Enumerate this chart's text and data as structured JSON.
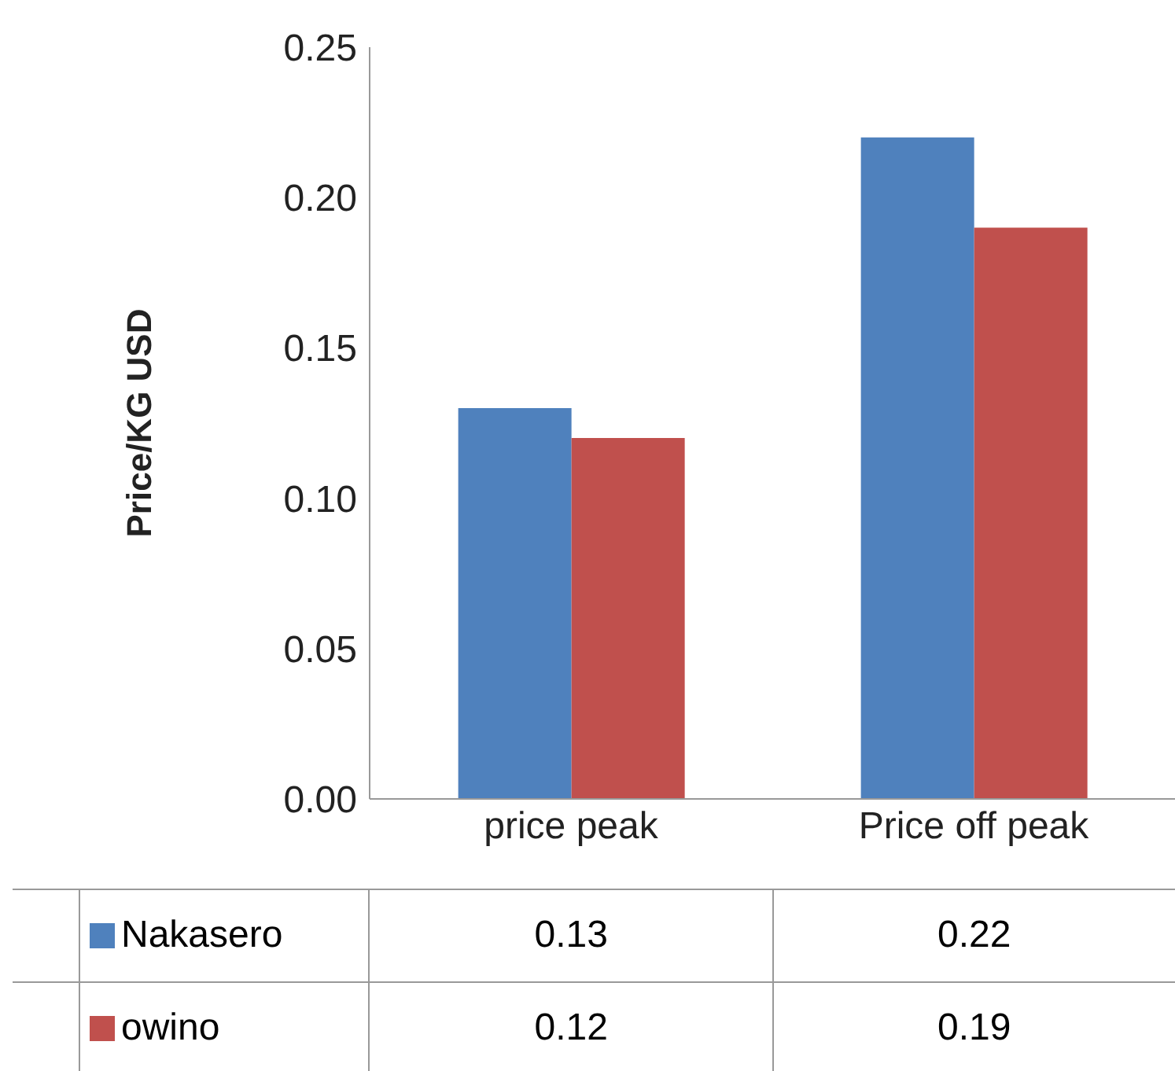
{
  "chart_data": {
    "type": "bar",
    "ylabel": "Price/KG USD",
    "categories": [
      "price peak",
      "Price off peak"
    ],
    "series": [
      {
        "name": "Nakasero",
        "color": "#4f81bd",
        "values": [
          0.13,
          0.22
        ]
      },
      {
        "name": "owino",
        "color": "#c0504d",
        "values": [
          0.12,
          0.19
        ]
      }
    ],
    "ylim": [
      0,
      0.25
    ],
    "yticks": [
      {
        "value": 0,
        "label": "0.00"
      },
      0.05,
      {
        "value": 0.1,
        "label": "0.10"
      },
      0.15,
      {
        "value": 0.2,
        "label": "0.20"
      },
      0.25
    ],
    "data_labels": true,
    "legend": "bottom",
    "grid": false
  }
}
